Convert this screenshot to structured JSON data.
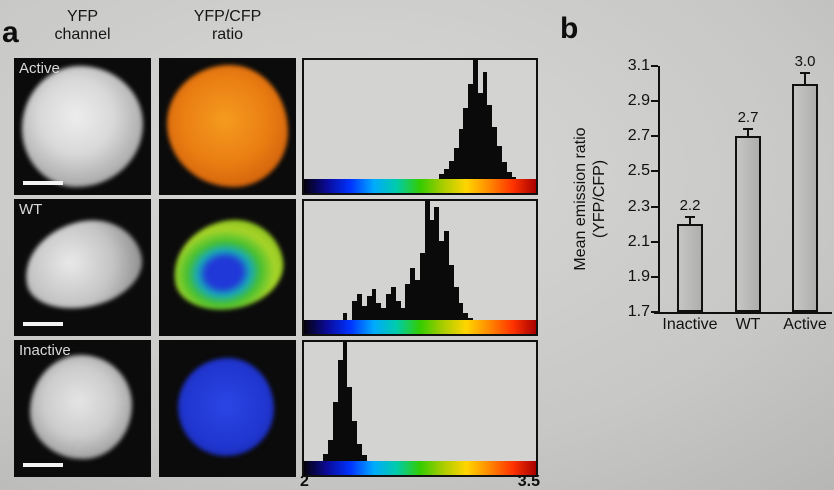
{
  "figure": {
    "panel_a_label": "a",
    "panel_b_label": "b"
  },
  "panel_a": {
    "col1_title_line1": "YFP",
    "col1_title_line2": "channel",
    "col2_title_line1": "YFP/CFP",
    "col2_title_line2": "ratio",
    "rows": [
      {
        "label": "Active"
      },
      {
        "label": "WT"
      },
      {
        "label": "Inactive"
      }
    ],
    "ratio_axis_min": "2",
    "ratio_axis_max": "3.5"
  },
  "panel_b": {
    "ylabel_line1": "Mean emission ratio",
    "ylabel_line2": "(YFP/CFP)"
  },
  "colors": {
    "histogram_bar": "#0a0a0a",
    "bar_fill": "#b8b8b6",
    "colorbar_gradient": [
      "#05020a",
      "#0a0a9a",
      "#0033ff",
      "#00aaff",
      "#00ccaa",
      "#33cc00",
      "#aacc00",
      "#ffd500",
      "#ff8800",
      "#ff3300",
      "#a80000"
    ]
  },
  "chart_data": [
    {
      "type": "bar",
      "role": "pixel-ratio-histogram",
      "series_label": "Active",
      "x_range": [
        2,
        3.5
      ],
      "x_tick_labels": [
        "2",
        "3.5"
      ],
      "colorbar": true,
      "bin_heights": [
        0,
        0,
        0,
        0,
        0,
        0,
        0,
        0,
        0,
        0,
        0,
        0,
        0,
        0,
        0,
        0,
        0,
        0,
        0,
        0,
        0,
        0,
        0,
        0,
        0,
        0,
        0,
        0,
        0.04,
        0.08,
        0.15,
        0.26,
        0.42,
        0.6,
        0.8,
        1,
        0.72,
        0.9,
        0.62,
        0.44,
        0.28,
        0.14,
        0.06,
        0.02,
        0,
        0,
        0,
        0
      ]
    },
    {
      "type": "bar",
      "role": "pixel-ratio-histogram",
      "series_label": "WT",
      "x_range": [
        2,
        3.5
      ],
      "x_tick_labels": [
        "2",
        "3.5"
      ],
      "colorbar": true,
      "bin_heights": [
        0,
        0,
        0,
        0,
        0,
        0,
        0,
        0,
        0.06,
        0,
        0.16,
        0.22,
        0.12,
        0.2,
        0.26,
        0.14,
        0.1,
        0.22,
        0.28,
        0.16,
        0.1,
        0.3,
        0.44,
        0.34,
        0.56,
        1,
        0.84,
        0.95,
        0.66,
        0.75,
        0.46,
        0.28,
        0.14,
        0.06,
        0.02,
        0,
        0,
        0,
        0,
        0,
        0,
        0,
        0,
        0,
        0,
        0,
        0,
        0
      ]
    },
    {
      "type": "bar",
      "role": "pixel-ratio-histogram",
      "series_label": "Inactive",
      "x_range": [
        2,
        3.5
      ],
      "x_tick_labels": [
        "2",
        "3.5"
      ],
      "colorbar": true,
      "bin_heights": [
        0,
        0,
        0,
        0,
        0.06,
        0.18,
        0.5,
        0.85,
        1,
        0.62,
        0.34,
        0.14,
        0.05,
        0,
        0,
        0,
        0,
        0,
        0,
        0,
        0,
        0,
        0,
        0,
        0,
        0,
        0,
        0,
        0,
        0,
        0,
        0,
        0,
        0,
        0,
        0,
        0,
        0,
        0,
        0,
        0,
        0,
        0,
        0,
        0,
        0,
        0,
        0
      ]
    },
    {
      "type": "bar",
      "role": "mean-emission-ratio",
      "title": "",
      "xlabel": "",
      "ylabel": "Mean emission ratio (YFP/CFP)",
      "categories": [
        "Inactive",
        "WT",
        "Active"
      ],
      "values": [
        2.2,
        2.7,
        3.0
      ],
      "value_labels": [
        "2.2",
        "2.7",
        "3.0"
      ],
      "errors": [
        0.04,
        0.04,
        0.06
      ],
      "ylim": [
        1.7,
        3.1
      ],
      "yticks": [
        1.7,
        1.9,
        2.1,
        2.3,
        2.5,
        2.7,
        2.9,
        3.1
      ],
      "ytick_labels": [
        "1.7",
        "1.9",
        "2.1",
        "2.3",
        "2.5",
        "2.7",
        "2.9",
        "3.1"
      ],
      "grid": false,
      "legend": false
    }
  ]
}
